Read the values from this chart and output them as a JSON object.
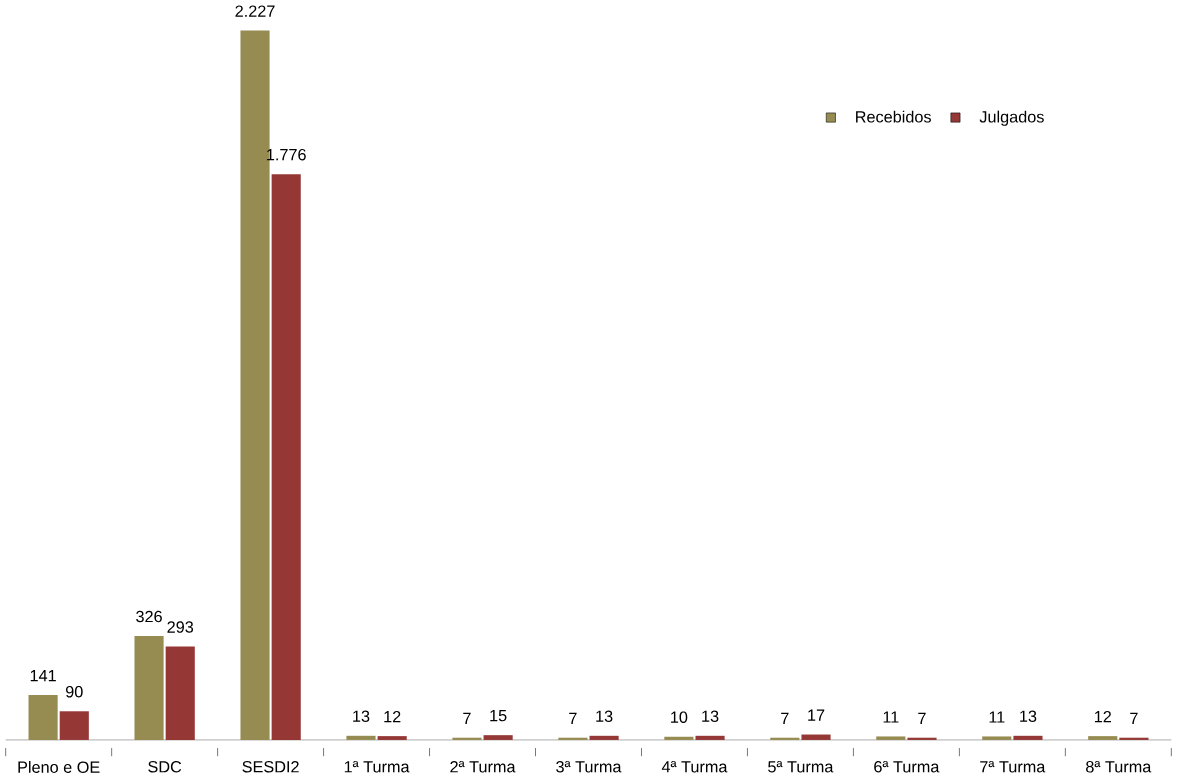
{
  "chart_data": {
    "type": "bar",
    "categories": [
      "Pleno e OE",
      "SDC",
      "SESDI2",
      "1ª Turma",
      "2ª Turma",
      "3ª Turma",
      "4ª Turma",
      "5ª Turma",
      "6ª Turma",
      "7ª Turma",
      "8ª Turma"
    ],
    "series": [
      {
        "name": "Recebidos",
        "color": "#968c52",
        "values": [
          141,
          326,
          2227,
          13,
          7,
          7,
          10,
          7,
          11,
          11,
          12
        ],
        "value_labels": [
          "141",
          "326",
          "2.227",
          "13",
          "7",
          "7",
          "10",
          "7",
          "11",
          "11",
          "12"
        ]
      },
      {
        "name": "Julgados",
        "color": "#953735",
        "values": [
          90,
          293,
          1776,
          12,
          15,
          13,
          13,
          17,
          7,
          13,
          7
        ],
        "value_labels": [
          "90",
          "293",
          "1.776",
          "12",
          "15",
          "13",
          "13",
          "17",
          "7",
          "13",
          "7"
        ]
      }
    ],
    "legend": "top right"
  }
}
